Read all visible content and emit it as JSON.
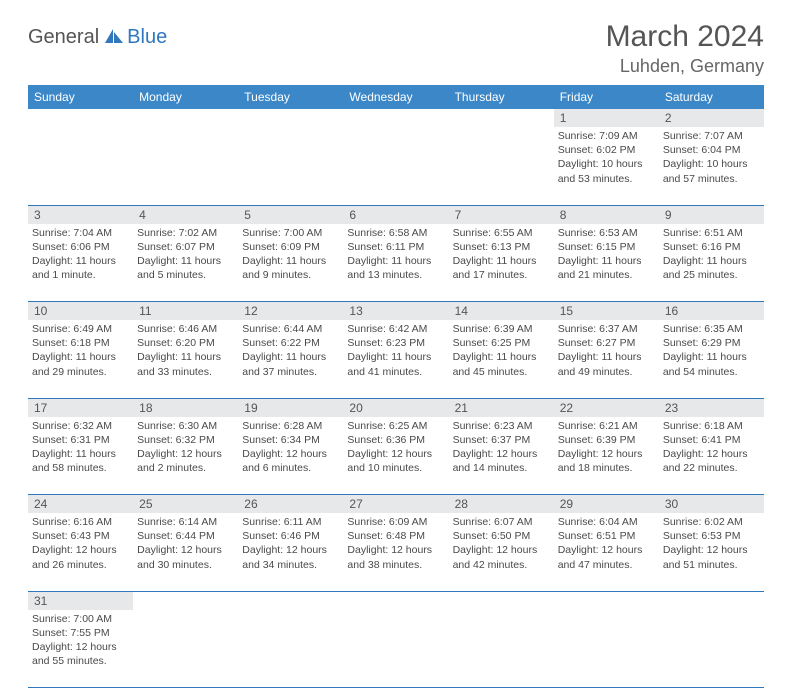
{
  "logo": {
    "text1": "General",
    "text2": "Blue"
  },
  "title": {
    "month": "March 2024",
    "location": "Luhden, Germany"
  },
  "colors": {
    "header_bg": "#3b87c8",
    "header_text": "#ffffff",
    "daynum_bg": "#e7e8e9",
    "border": "#2f78bd",
    "logo_blue": "#2f78bd"
  },
  "weekdays": [
    "Sunday",
    "Monday",
    "Tuesday",
    "Wednesday",
    "Thursday",
    "Friday",
    "Saturday"
  ],
  "weeks": [
    {
      "nums": [
        "",
        "",
        "",
        "",
        "",
        "1",
        "2"
      ],
      "days": [
        null,
        null,
        null,
        null,
        null,
        {
          "sunrise": "Sunrise: 7:09 AM",
          "sunset": "Sunset: 6:02 PM",
          "d1": "Daylight: 10 hours",
          "d2": "and 53 minutes."
        },
        {
          "sunrise": "Sunrise: 7:07 AM",
          "sunset": "Sunset: 6:04 PM",
          "d1": "Daylight: 10 hours",
          "d2": "and 57 minutes."
        }
      ]
    },
    {
      "nums": [
        "3",
        "4",
        "5",
        "6",
        "7",
        "8",
        "9"
      ],
      "days": [
        {
          "sunrise": "Sunrise: 7:04 AM",
          "sunset": "Sunset: 6:06 PM",
          "d1": "Daylight: 11 hours",
          "d2": "and 1 minute."
        },
        {
          "sunrise": "Sunrise: 7:02 AM",
          "sunset": "Sunset: 6:07 PM",
          "d1": "Daylight: 11 hours",
          "d2": "and 5 minutes."
        },
        {
          "sunrise": "Sunrise: 7:00 AM",
          "sunset": "Sunset: 6:09 PM",
          "d1": "Daylight: 11 hours",
          "d2": "and 9 minutes."
        },
        {
          "sunrise": "Sunrise: 6:58 AM",
          "sunset": "Sunset: 6:11 PM",
          "d1": "Daylight: 11 hours",
          "d2": "and 13 minutes."
        },
        {
          "sunrise": "Sunrise: 6:55 AM",
          "sunset": "Sunset: 6:13 PM",
          "d1": "Daylight: 11 hours",
          "d2": "and 17 minutes."
        },
        {
          "sunrise": "Sunrise: 6:53 AM",
          "sunset": "Sunset: 6:15 PM",
          "d1": "Daylight: 11 hours",
          "d2": "and 21 minutes."
        },
        {
          "sunrise": "Sunrise: 6:51 AM",
          "sunset": "Sunset: 6:16 PM",
          "d1": "Daylight: 11 hours",
          "d2": "and 25 minutes."
        }
      ]
    },
    {
      "nums": [
        "10",
        "11",
        "12",
        "13",
        "14",
        "15",
        "16"
      ],
      "days": [
        {
          "sunrise": "Sunrise: 6:49 AM",
          "sunset": "Sunset: 6:18 PM",
          "d1": "Daylight: 11 hours",
          "d2": "and 29 minutes."
        },
        {
          "sunrise": "Sunrise: 6:46 AM",
          "sunset": "Sunset: 6:20 PM",
          "d1": "Daylight: 11 hours",
          "d2": "and 33 minutes."
        },
        {
          "sunrise": "Sunrise: 6:44 AM",
          "sunset": "Sunset: 6:22 PM",
          "d1": "Daylight: 11 hours",
          "d2": "and 37 minutes."
        },
        {
          "sunrise": "Sunrise: 6:42 AM",
          "sunset": "Sunset: 6:23 PM",
          "d1": "Daylight: 11 hours",
          "d2": "and 41 minutes."
        },
        {
          "sunrise": "Sunrise: 6:39 AM",
          "sunset": "Sunset: 6:25 PM",
          "d1": "Daylight: 11 hours",
          "d2": "and 45 minutes."
        },
        {
          "sunrise": "Sunrise: 6:37 AM",
          "sunset": "Sunset: 6:27 PM",
          "d1": "Daylight: 11 hours",
          "d2": "and 49 minutes."
        },
        {
          "sunrise": "Sunrise: 6:35 AM",
          "sunset": "Sunset: 6:29 PM",
          "d1": "Daylight: 11 hours",
          "d2": "and 54 minutes."
        }
      ]
    },
    {
      "nums": [
        "17",
        "18",
        "19",
        "20",
        "21",
        "22",
        "23"
      ],
      "days": [
        {
          "sunrise": "Sunrise: 6:32 AM",
          "sunset": "Sunset: 6:31 PM",
          "d1": "Daylight: 11 hours",
          "d2": "and 58 minutes."
        },
        {
          "sunrise": "Sunrise: 6:30 AM",
          "sunset": "Sunset: 6:32 PM",
          "d1": "Daylight: 12 hours",
          "d2": "and 2 minutes."
        },
        {
          "sunrise": "Sunrise: 6:28 AM",
          "sunset": "Sunset: 6:34 PM",
          "d1": "Daylight: 12 hours",
          "d2": "and 6 minutes."
        },
        {
          "sunrise": "Sunrise: 6:25 AM",
          "sunset": "Sunset: 6:36 PM",
          "d1": "Daylight: 12 hours",
          "d2": "and 10 minutes."
        },
        {
          "sunrise": "Sunrise: 6:23 AM",
          "sunset": "Sunset: 6:37 PM",
          "d1": "Daylight: 12 hours",
          "d2": "and 14 minutes."
        },
        {
          "sunrise": "Sunrise: 6:21 AM",
          "sunset": "Sunset: 6:39 PM",
          "d1": "Daylight: 12 hours",
          "d2": "and 18 minutes."
        },
        {
          "sunrise": "Sunrise: 6:18 AM",
          "sunset": "Sunset: 6:41 PM",
          "d1": "Daylight: 12 hours",
          "d2": "and 22 minutes."
        }
      ]
    },
    {
      "nums": [
        "24",
        "25",
        "26",
        "27",
        "28",
        "29",
        "30"
      ],
      "days": [
        {
          "sunrise": "Sunrise: 6:16 AM",
          "sunset": "Sunset: 6:43 PM",
          "d1": "Daylight: 12 hours",
          "d2": "and 26 minutes."
        },
        {
          "sunrise": "Sunrise: 6:14 AM",
          "sunset": "Sunset: 6:44 PM",
          "d1": "Daylight: 12 hours",
          "d2": "and 30 minutes."
        },
        {
          "sunrise": "Sunrise: 6:11 AM",
          "sunset": "Sunset: 6:46 PM",
          "d1": "Daylight: 12 hours",
          "d2": "and 34 minutes."
        },
        {
          "sunrise": "Sunrise: 6:09 AM",
          "sunset": "Sunset: 6:48 PM",
          "d1": "Daylight: 12 hours",
          "d2": "and 38 minutes."
        },
        {
          "sunrise": "Sunrise: 6:07 AM",
          "sunset": "Sunset: 6:50 PM",
          "d1": "Daylight: 12 hours",
          "d2": "and 42 minutes."
        },
        {
          "sunrise": "Sunrise: 6:04 AM",
          "sunset": "Sunset: 6:51 PM",
          "d1": "Daylight: 12 hours",
          "d2": "and 47 minutes."
        },
        {
          "sunrise": "Sunrise: 6:02 AM",
          "sunset": "Sunset: 6:53 PM",
          "d1": "Daylight: 12 hours",
          "d2": "and 51 minutes."
        }
      ]
    },
    {
      "nums": [
        "31",
        "",
        "",
        "",
        "",
        "",
        ""
      ],
      "days": [
        {
          "sunrise": "Sunrise: 7:00 AM",
          "sunset": "Sunset: 7:55 PM",
          "d1": "Daylight: 12 hours",
          "d2": "and 55 minutes."
        },
        null,
        null,
        null,
        null,
        null,
        null
      ]
    }
  ]
}
